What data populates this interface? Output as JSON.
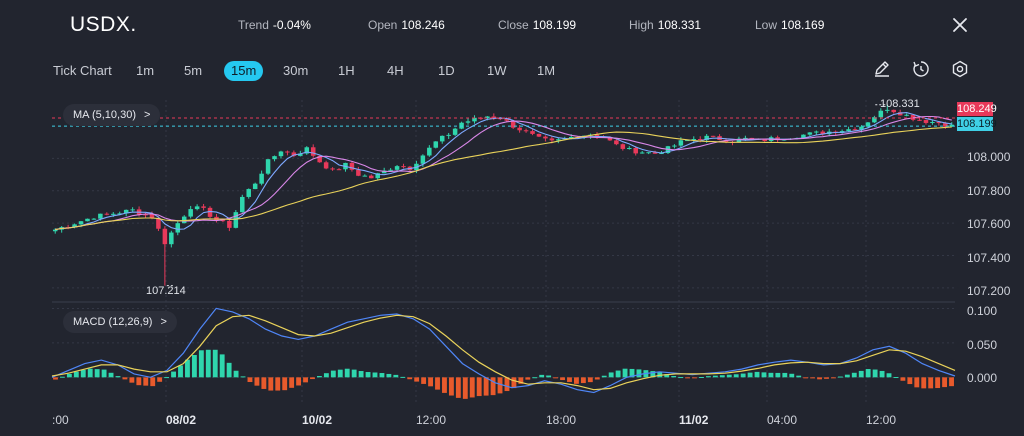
{
  "header": {
    "symbol": "USDX.",
    "stats": [
      {
        "label": "Trend",
        "value": "-0.04%"
      },
      {
        "label": "Open",
        "value": "108.246"
      },
      {
        "label": "Close",
        "value": "108.199"
      },
      {
        "label": "High",
        "value": "108.331"
      },
      {
        "label": "Low",
        "value": "108.169"
      }
    ],
    "close_icon": "close-icon"
  },
  "timeframes": {
    "chart_type_label": "Tick Chart",
    "items": [
      "1m",
      "5m",
      "15m",
      "30m",
      "1H",
      "4H",
      "1D",
      "1W",
      "1M"
    ],
    "active": "15m"
  },
  "tools": [
    "pencil-icon",
    "timer-icon",
    "settings-icon"
  ],
  "indicators": {
    "ma_label": "MA (5,10,30)",
    "ma_chevron": ">",
    "macd_label": "MACD (12,26,9)",
    "macd_chevron": ">"
  },
  "price_tags": {
    "red": "108.249",
    "cyan": "108.199",
    "high_marker": "108.331",
    "low_marker": "107.214"
  },
  "colors": {
    "background": "#22252f",
    "bull": "#2fd6ad",
    "bear": "#e8395a",
    "ma5": "#7ea9ff",
    "ma10": "#d987e8",
    "ma30": "#e9d25a",
    "accent": "#25c8f0"
  },
  "chart_data": [
    {
      "type": "candlestick",
      "y_ticks": [
        "108.000",
        "107.800",
        "107.600",
        "107.400",
        "107.200"
      ],
      "ylim": [
        107.15,
        108.36
      ],
      "x_ticks": [
        ":00",
        "08/02",
        "10/02",
        "12:00",
        "18:00",
        "11/02",
        "04:00",
        "12:00"
      ],
      "bold_x_ticks": [
        "08/02",
        "10/02",
        "11/02"
      ],
      "approx_close_path": [
        [
          0,
          107.56
        ],
        [
          3,
          107.6
        ],
        [
          6,
          107.64
        ],
        [
          9,
          107.66
        ],
        [
          12,
          107.68
        ],
        [
          15,
          107.64
        ],
        [
          17,
          107.48
        ],
        [
          19,
          107.6
        ],
        [
          21,
          107.7
        ],
        [
          23,
          107.68
        ],
        [
          25,
          107.62
        ],
        [
          27,
          107.58
        ],
        [
          29,
          107.76
        ],
        [
          31,
          107.85
        ],
        [
          33,
          107.98
        ],
        [
          35,
          108.05
        ],
        [
          37,
          108.02
        ],
        [
          39,
          108.06
        ],
        [
          41,
          107.98
        ],
        [
          43,
          107.92
        ],
        [
          45,
          107.96
        ],
        [
          47,
          107.9
        ],
        [
          49,
          107.88
        ],
        [
          51,
          107.92
        ],
        [
          53,
          107.96
        ],
        [
          55,
          107.94
        ],
        [
          57,
          108.02
        ],
        [
          59,
          108.1
        ],
        [
          61,
          108.15
        ],
        [
          63,
          108.22
        ],
        [
          65,
          108.24
        ],
        [
          67,
          108.26
        ],
        [
          69,
          108.25
        ],
        [
          71,
          108.2
        ],
        [
          73,
          108.16
        ],
        [
          75,
          108.12
        ],
        [
          77,
          108.1
        ],
        [
          79,
          108.12
        ],
        [
          81,
          108.14
        ],
        [
          83,
          108.15
        ],
        [
          85,
          108.13
        ],
        [
          87,
          108.08
        ],
        [
          89,
          108.05
        ],
        [
          91,
          108.04
        ],
        [
          93,
          108.03
        ],
        [
          95,
          108.06
        ],
        [
          97,
          108.1
        ],
        [
          99,
          108.12
        ],
        [
          101,
          108.13
        ],
        [
          103,
          108.12
        ],
        [
          105,
          108.11
        ],
        [
          107,
          108.12
        ],
        [
          109,
          108.11
        ],
        [
          111,
          108.12
        ],
        [
          113,
          108.13
        ],
        [
          115,
          108.14
        ],
        [
          117,
          108.15
        ],
        [
          119,
          108.16
        ],
        [
          121,
          108.17
        ],
        [
          123,
          108.18
        ],
        [
          125,
          108.2
        ],
        [
          127,
          108.26
        ],
        [
          129,
          108.31
        ],
        [
          131,
          108.28
        ],
        [
          133,
          108.25
        ],
        [
          135,
          108.23
        ],
        [
          137,
          108.22
        ],
        [
          139,
          108.2
        ]
      ],
      "moving_averages": [
        "MA5",
        "MA10",
        "MA30"
      ]
    },
    {
      "type": "line",
      "y_ticks": [
        "0.100",
        "0.050",
        "0.000"
      ],
      "ylim": [
        -0.03,
        0.105
      ],
      "series": [
        {
          "name": "MACD",
          "values": [
            0.0,
            0.01,
            0.02,
            0.025,
            0.018,
            0.005,
            0.0,
            0.01,
            0.035,
            0.07,
            0.1,
            0.095,
            0.085,
            0.07,
            0.06,
            0.055,
            0.06,
            0.07,
            0.08,
            0.085,
            0.09,
            0.092,
            0.085,
            0.07,
            0.045,
            0.02,
            0.005,
            -0.008,
            -0.015,
            -0.012,
            -0.005,
            -0.01,
            -0.018,
            -0.022,
            -0.012,
            0.0,
            0.005,
            0.008,
            0.006,
            0.004,
            0.006,
            0.008,
            0.012,
            0.018,
            0.022,
            0.025,
            0.022,
            0.018,
            0.02,
            0.028,
            0.04,
            0.045,
            0.035,
            0.02,
            0.01,
            0.002
          ]
        },
        {
          "name": "Signal",
          "values": [
            0.002,
            0.006,
            0.012,
            0.018,
            0.018,
            0.012,
            0.008,
            0.008,
            0.02,
            0.045,
            0.075,
            0.088,
            0.09,
            0.082,
            0.072,
            0.062,
            0.06,
            0.064,
            0.072,
            0.08,
            0.086,
            0.09,
            0.088,
            0.078,
            0.06,
            0.04,
            0.022,
            0.008,
            -0.004,
            -0.01,
            -0.008,
            -0.008,
            -0.012,
            -0.018,
            -0.016,
            -0.008,
            -0.002,
            0.003,
            0.005,
            0.005,
            0.005,
            0.006,
            0.009,
            0.013,
            0.018,
            0.021,
            0.022,
            0.02,
            0.02,
            0.024,
            0.032,
            0.04,
            0.038,
            0.03,
            0.02,
            0.01
          ]
        }
      ],
      "histogram": "MACD minus Signal, positive bars #2fd6ad, negative bars #e85a2c"
    }
  ]
}
